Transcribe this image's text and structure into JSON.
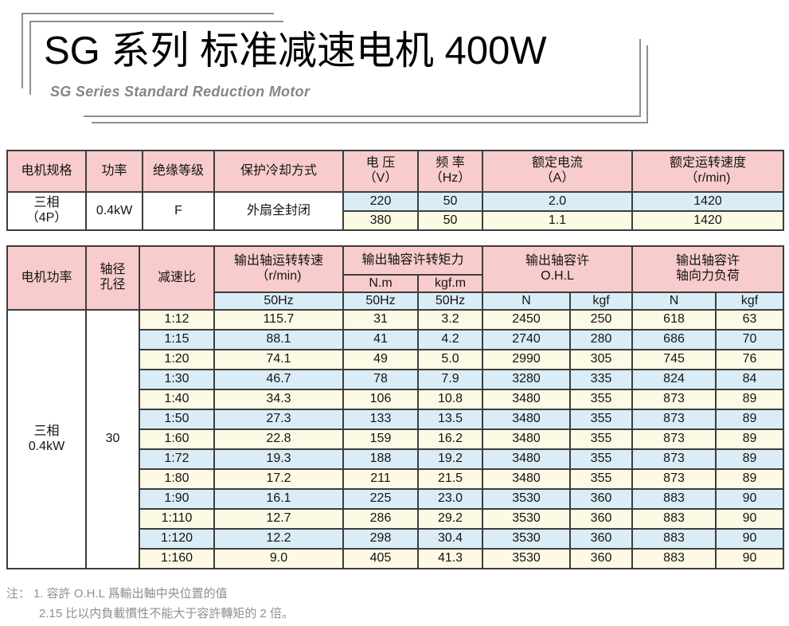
{
  "title": {
    "main": "SG 系列 标准减速电机 400W",
    "subtitle": "SG Series Standard Reduction Motor"
  },
  "colors": {
    "header_pink": "#f8cccc",
    "row_blue": "#daedf7",
    "row_cream": "#fcf9e4",
    "grid_border": "#3d3d3d",
    "frame_gray": "#8f8f8f",
    "subtitle_gray": "#858585",
    "note_gray": "#8f8f8f"
  },
  "table1": {
    "headers": [
      "电机规格",
      "功率",
      "绝缘等级",
      "保护冷却方式",
      "电 压\n（V）",
      "频 率\n（Hz）",
      "额定电流\n（A）",
      "额定运转速度\n（r/min)"
    ],
    "spec_cells": [
      "三相\n（4P）",
      "0.4kW",
      "F",
      "外扇全封闭"
    ],
    "rows": [
      [
        "220",
        "50",
        "2.0",
        "1420"
      ],
      [
        "380",
        "50",
        "1.1",
        "1420"
      ]
    ]
  },
  "table2": {
    "headers": {
      "motor_power": "电机功率",
      "shaft": "轴径\n孔径",
      "ratio": "减速比",
      "output_speed": "输出轴运转转速\n（r/min)",
      "torque": "输出轴容许转矩力",
      "nm": "N.m",
      "kgfm": "kgf.m",
      "ohl": "输出轴容许\nO.H.L",
      "axial": "输出轴容许\n轴向力负荷",
      "sub": [
        "50Hz",
        "50Hz",
        "50Hz",
        "N",
        "kgf",
        "N",
        "kgf"
      ]
    },
    "spec_cells": [
      "三相\n0.4kW",
      "30"
    ],
    "rows": [
      [
        "1:12",
        "115.7",
        "31",
        "3.2",
        "2450",
        "250",
        "618",
        "63"
      ],
      [
        "1:15",
        "88.1",
        "41",
        "4.2",
        "2740",
        "280",
        "686",
        "70"
      ],
      [
        "1:20",
        "74.1",
        "49",
        "5.0",
        "2990",
        "305",
        "745",
        "76"
      ],
      [
        "1:30",
        "46.7",
        "78",
        "7.9",
        "3280",
        "335",
        "824",
        "84"
      ],
      [
        "1:40",
        "34.3",
        "106",
        "10.8",
        "3480",
        "355",
        "873",
        "89"
      ],
      [
        "1:50",
        "27.3",
        "133",
        "13.5",
        "3480",
        "355",
        "873",
        "89"
      ],
      [
        "1:60",
        "22.8",
        "159",
        "16.2",
        "3480",
        "355",
        "873",
        "89"
      ],
      [
        "1:72",
        "19.3",
        "188",
        "19.2",
        "3480",
        "355",
        "873",
        "89"
      ],
      [
        "1:80",
        "17.2",
        "211",
        "21.5",
        "3480",
        "355",
        "873",
        "89"
      ],
      [
        "1:90",
        "16.1",
        "225",
        "23.0",
        "3530",
        "360",
        "883",
        "90"
      ],
      [
        "1:110",
        "12.7",
        "286",
        "29.2",
        "3530",
        "360",
        "883",
        "90"
      ],
      [
        "1:120",
        "12.2",
        "298",
        "30.4",
        "3530",
        "360",
        "883",
        "90"
      ],
      [
        "1:160",
        "9.0",
        "405",
        "41.3",
        "3530",
        "360",
        "883",
        "90"
      ]
    ]
  },
  "notes": {
    "label": "注：",
    "line1": "1. 容許 O.H.L 爲輸出軸中央位置的值",
    "line2": "2.15 比以内負載慣性不能大于容許轉矩的 2 倍。"
  }
}
